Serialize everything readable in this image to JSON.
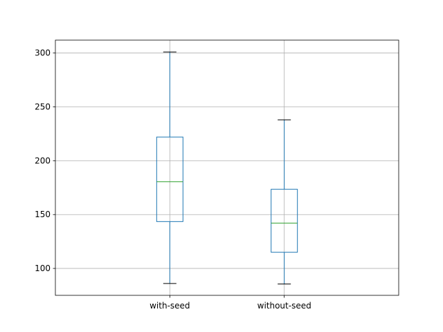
{
  "chart_data": {
    "type": "box",
    "categories": [
      "with-seed",
      "without-seed"
    ],
    "boxes": [
      {
        "category": "with-seed",
        "whisker_low": 86,
        "q1": 143.5,
        "median": 180.5,
        "q3": 222,
        "whisker_high": 301
      },
      {
        "category": "without-seed",
        "whisker_low": 85.5,
        "q1": 115,
        "median": 142,
        "q3": 173.5,
        "whisker_high": 238
      }
    ],
    "ylim": [
      75,
      312
    ],
    "yticks": [
      100,
      150,
      200,
      250,
      300
    ],
    "ytick_labels": [
      "100",
      "150",
      "200",
      "250",
      "300"
    ],
    "grid": true,
    "title": "",
    "xlabel": "",
    "ylabel": "",
    "colors": {
      "box": "#1f77b4",
      "median": "#2ca02c",
      "whisker": "#1f77b4",
      "cap": "#000000",
      "grid": "#b0b0b0",
      "axes": "#000000"
    }
  }
}
